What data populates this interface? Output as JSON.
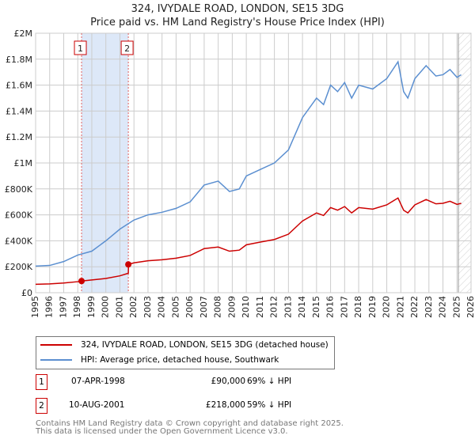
{
  "chart_data": {
    "type": "line",
    "title": "324, IVYDALE ROAD, LONDON, SE15 3DG",
    "subtitle": "Price paid vs. HM Land Registry's House Price Index (HPI)",
    "xlim": [
      1995,
      2026
    ],
    "ylim": [
      0,
      2000000
    ],
    "x_ticks": [
      "1995",
      "1996",
      "1997",
      "1998",
      "1999",
      "2000",
      "2001",
      "2002",
      "2003",
      "2004",
      "2005",
      "2006",
      "2007",
      "2008",
      "2009",
      "2010",
      "2011",
      "2012",
      "2013",
      "2014",
      "2015",
      "2016",
      "2017",
      "2018",
      "2019",
      "2020",
      "2021",
      "2022",
      "2023",
      "2024",
      "2025",
      "2026"
    ],
    "y_ticks": [
      {
        "v": 0,
        "l": "£0"
      },
      {
        "v": 200000,
        "l": "£200K"
      },
      {
        "v": 400000,
        "l": "£400K"
      },
      {
        "v": 600000,
        "l": "£600K"
      },
      {
        "v": 800000,
        "l": "£800K"
      },
      {
        "v": 1000000,
        "l": "£1M"
      },
      {
        "v": 1200000,
        "l": "£1.2M"
      },
      {
        "v": 1400000,
        "l": "£1.4M"
      },
      {
        "v": 1600000,
        "l": "£1.6M"
      },
      {
        "v": 1800000,
        "l": "£1.8M"
      },
      {
        "v": 2000000,
        "l": "£2M"
      }
    ],
    "grid": true,
    "series": [
      {
        "name": "324, IVYDALE ROAD, LONDON, SE15 3DG (detached house)",
        "color": "#cc0000",
        "x": [
          1995,
          1996,
          1997,
          1998,
          1998.27,
          1999,
          2000,
          2001,
          2001.6,
          2001.61,
          2002,
          2003,
          2004,
          2005,
          2006,
          2007,
          2008,
          2008.8,
          2009.5,
          2010,
          2011,
          2012,
          2013,
          2014,
          2015,
          2015.5,
          2016,
          2016.5,
          2017,
          2017.5,
          2018,
          2019,
          2020,
          2020.8,
          2021.2,
          2021.5,
          2022,
          2022.8,
          2023.5,
          2024,
          2024.5,
          2025,
          2025.3
        ],
        "y": [
          65000,
          68000,
          75000,
          85000,
          90000,
          98000,
          110000,
          130000,
          150000,
          218000,
          230000,
          246000,
          254000,
          266000,
          287000,
          340000,
          352000,
          320000,
          328000,
          369000,
          390000,
          410000,
          451000,
          553000,
          615000,
          595000,
          656000,
          636000,
          664000,
          615000,
          656000,
          644000,
          677000,
          730000,
          636000,
          615000,
          677000,
          718000,
          685000,
          689000,
          705000,
          681000,
          689000
        ]
      },
      {
        "name": "HPI: Average price, detached house, Southwark",
        "color": "#5b8fd0",
        "x": [
          1995,
          1996,
          1997,
          1998,
          1999,
          2000,
          2001,
          2002,
          2003,
          2004,
          2005,
          2006,
          2007,
          2008,
          2008.8,
          2009.5,
          2010,
          2011,
          2012,
          2013,
          2014,
          2015,
          2015.5,
          2016,
          2016.5,
          2017,
          2017.5,
          2018,
          2019,
          2020,
          2020.8,
          2021.2,
          2021.5,
          2022,
          2022.8,
          2023.5,
          2024,
          2024.5,
          2025,
          2025.3
        ],
        "y": [
          205000,
          210000,
          240000,
          290000,
          320000,
          400000,
          490000,
          560000,
          600000,
          620000,
          650000,
          700000,
          830000,
          860000,
          780000,
          800000,
          900000,
          950000,
          1000000,
          1100000,
          1350000,
          1500000,
          1450000,
          1600000,
          1550000,
          1620000,
          1500000,
          1600000,
          1570000,
          1650000,
          1780000,
          1550000,
          1500000,
          1650000,
          1750000,
          1670000,
          1680000,
          1720000,
          1660000,
          1680000
        ]
      }
    ],
    "sales": [
      {
        "id": "1",
        "x": 1998.27,
        "y": 90000,
        "date": "07-APR-1998",
        "price": "£90,000",
        "hpi": "69% ↓ HPI"
      },
      {
        "id": "2",
        "x": 2001.6,
        "y": 218000,
        "date": "10-AUG-2001",
        "price": "£218,000",
        "hpi": "59% ↓ HPI"
      }
    ],
    "hatch_from": 2025.1
  },
  "footer": [
    "Contains HM Land Registry data © Crown copyright and database right 2025.",
    "This data is licensed under the Open Government Licence v3.0."
  ]
}
